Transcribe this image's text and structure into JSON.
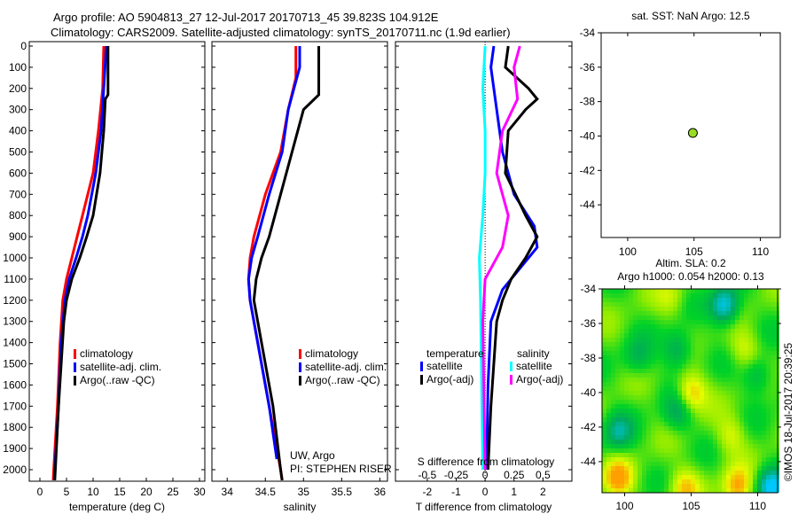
{
  "title_line1": "Argo profile: AO 5904813_27 12-Jul-2017 20170713_45 39.823S 104.912E",
  "title_line2": "Climatology: CARS2009. Satellite-adjusted climatology: synTS_20170711.nc (1.9d earlier)",
  "chart_data": [
    {
      "type": "line",
      "name": "temperature",
      "xlabel": "temperature (deg C)",
      "ylabel": "depth",
      "xlim": [
        -2,
        31
      ],
      "ylim": [
        2070,
        0
      ],
      "xticks": [
        0,
        5,
        10,
        15,
        20,
        25,
        30
      ],
      "yticks": [
        0,
        100,
        200,
        300,
        400,
        500,
        600,
        700,
        800,
        900,
        1000,
        1100,
        1200,
        1300,
        1400,
        1500,
        1600,
        1700,
        1800,
        1900,
        2000
      ],
      "legend": [
        "climatology",
        "satellite-adj. clim.",
        "Argo(..raw -QC)"
      ],
      "series": [
        {
          "name": "climatology",
          "color": "#ff0000",
          "depth": [
            0,
            200,
            400,
            600,
            800,
            900,
            1000,
            1100,
            1200,
            1400,
            1700,
            2000,
            2050
          ],
          "values": [
            12,
            11.8,
            11,
            10,
            8,
            7,
            6,
            5,
            4.3,
            3.8,
            3.3,
            2.6,
            2.5
          ]
        },
        {
          "name": "satellite-adj. clim.",
          "color": "#0000ff",
          "depth": [
            0,
            200,
            400,
            600,
            800,
            900,
            1000,
            1100,
            1200,
            1400,
            1700,
            2000,
            2050
          ],
          "values": [
            12.5,
            12,
            11.5,
            10.5,
            9,
            8,
            6.8,
            5.5,
            4.7,
            4,
            3.5,
            2.8,
            2.7
          ]
        },
        {
          "name": "Argo(..raw -QC)",
          "color": "#000000",
          "depth": [
            0,
            230,
            250,
            400,
            600,
            800,
            900,
            1000,
            1100,
            1200,
            1300,
            1500,
            1700,
            2000,
            2050
          ],
          "values": [
            12.8,
            12.8,
            12.3,
            12,
            11.3,
            10,
            8.8,
            7.5,
            6,
            5,
            4.5,
            4,
            3.5,
            2.9,
            2.8
          ]
        }
      ]
    },
    {
      "type": "line",
      "name": "salinity",
      "xlabel": "salinity",
      "xlim": [
        33.8,
        36.1
      ],
      "ylim": [
        2070,
        0
      ],
      "xticks": [
        34,
        34.5,
        35,
        35.5,
        36
      ],
      "legend": [
        "climatology",
        "satellite-adj. clim.",
        "Argo(..raw -QC)"
      ],
      "annotation": [
        "UW, Argo",
        "PI: STEPHEN RISER"
      ],
      "series": [
        {
          "name": "climatology",
          "color": "#ff0000",
          "depth": [
            0,
            150,
            300,
            500,
            700,
            900,
            1000,
            1100,
            1200,
            1400,
            1700,
            2000,
            2050
          ],
          "values": [
            34.9,
            34.9,
            34.8,
            34.7,
            34.5,
            34.35,
            34.3,
            34.28,
            34.3,
            34.4,
            34.55,
            34.7,
            34.72
          ]
        },
        {
          "name": "satellite-adj. clim.",
          "color": "#0000ff",
          "depth": [
            0,
            100,
            300,
            500,
            700,
            900,
            1000,
            1100,
            1200,
            1400,
            1700,
            1950
          ],
          "values": [
            34.95,
            34.95,
            34.8,
            34.72,
            34.55,
            34.4,
            34.32,
            34.28,
            34.3,
            34.4,
            34.55,
            34.65
          ]
        },
        {
          "name": "Argo(..raw -QC)",
          "color": "#000000",
          "depth": [
            0,
            230,
            300,
            500,
            700,
            900,
            1000,
            1100,
            1200,
            1300,
            1500,
            1700,
            2000,
            2050
          ],
          "values": [
            35.2,
            35.2,
            35,
            34.85,
            34.7,
            34.55,
            34.45,
            34.38,
            34.35,
            34.4,
            34.5,
            34.6,
            34.7,
            34.72
          ]
        }
      ]
    },
    {
      "type": "line",
      "name": "difference",
      "xlabel": "T difference from climatology",
      "x2label": "S difference from climatology",
      "xlim": [
        -3.1,
        3
      ],
      "x2lim": [
        -0.775,
        0.75
      ],
      "ylim": [
        2070,
        0
      ],
      "xticks": [
        -2,
        -1,
        0,
        1,
        2
      ],
      "x2ticks": [
        -0.5,
        -0.25,
        0,
        0.25,
        0.5
      ],
      "legend_t_title": "temperature",
      "legend_s_title": "salinity",
      "legend_t": [
        "satellite",
        "Argo(-adj)"
      ],
      "legend_s": [
        "satellite",
        "Argo(-adj)"
      ],
      "series": [
        {
          "name": "T satellite",
          "axis": "T",
          "color": "#0000ff",
          "depth": [
            0,
            100,
            300,
            500,
            700,
            850,
            950,
            1050,
            1150,
            1300,
            1600,
            2000
          ],
          "values": [
            0.3,
            0.2,
            0.4,
            0.6,
            1.0,
            1.7,
            1.8,
            1.2,
            0.6,
            0.2,
            0.1,
            0.05
          ]
        },
        {
          "name": "T Argo(-adj)",
          "axis": "T",
          "color": "#000000",
          "depth": [
            0,
            100,
            200,
            250,
            300,
            400,
            600,
            800,
            900,
            1000,
            1100,
            1200,
            1300,
            1500,
            1700,
            2000
          ],
          "values": [
            0.8,
            0.7,
            1.5,
            1.8,
            1.4,
            0.8,
            0.7,
            1.4,
            1.8,
            1.4,
            0.9,
            0.6,
            0.4,
            0.3,
            0.2,
            0.1
          ]
        },
        {
          "name": "S satellite",
          "axis": "S",
          "color": "#00ffff",
          "depth": [
            0,
            200,
            400,
            600,
            800,
            1000,
            1200,
            1600,
            2000
          ],
          "values": [
            0,
            -0.02,
            0,
            0,
            -0.02,
            -0.05,
            -0.04,
            -0.03,
            -0.02
          ]
        },
        {
          "name": "S Argo(-adj)",
          "axis": "S",
          "color": "#ff00ff",
          "depth": [
            0,
            100,
            250,
            400,
            600,
            800,
            950,
            1100,
            1300,
            2000
          ],
          "values": [
            0.3,
            0.25,
            0.28,
            0.15,
            0.1,
            0.2,
            0.15,
            0,
            -0.02,
            0
          ]
        }
      ]
    },
    {
      "type": "scatter",
      "name": "position",
      "title": "sat. SST: NaN Argo: 12.5",
      "xlim": [
        98,
        111.5
      ],
      "ylim": [
        -45.9,
        -34
      ],
      "xticks": [
        100,
        105,
        110
      ],
      "yticks": [
        -34,
        -36,
        -38,
        -40,
        -42,
        -44
      ],
      "points": [
        {
          "x": 104.912,
          "y": -39.823,
          "color": "#99dd22"
        }
      ]
    },
    {
      "type": "heatmap",
      "name": "sla",
      "title1": "Altim. SLA: 0.2",
      "title2": "Argo h1000: 0.054 h2000: 0.13",
      "xlim": [
        98.3,
        111.5
      ],
      "ylim": [
        -45.8,
        -34
      ],
      "xticks": [
        100,
        105,
        110
      ],
      "yticks": [
        -34,
        -36,
        -38,
        -40,
        -42,
        -44
      ],
      "features": [
        {
          "x": 107.5,
          "y": -35,
          "v": -1
        },
        {
          "x": 104,
          "y": -37.5,
          "v": -0.6
        },
        {
          "x": 99.5,
          "y": -42.3,
          "v": -0.6
        },
        {
          "x": 110,
          "y": -39,
          "v": -0.5
        },
        {
          "x": 111,
          "y": -45.5,
          "v": -1
        },
        {
          "x": 104,
          "y": -41.2,
          "v": -0.5
        },
        {
          "x": 105,
          "y": -40,
          "v": 0.7
        },
        {
          "x": 99.5,
          "y": -45,
          "v": 0.8
        },
        {
          "x": 108.5,
          "y": -45.5,
          "v": 0.8
        },
        {
          "x": 104.5,
          "y": -45.5,
          "v": 0.6
        },
        {
          "x": 101,
          "y": -38,
          "v": -0.4
        },
        {
          "x": 108,
          "y": -42.5,
          "v": 0.4
        },
        {
          "x": 103.5,
          "y": -34.5,
          "v": 0.3
        },
        {
          "x": 109,
          "y": -37.5,
          "v": 0.4
        }
      ]
    }
  ],
  "credit": "©IMOS 18-Jul-2017 20:39:25"
}
